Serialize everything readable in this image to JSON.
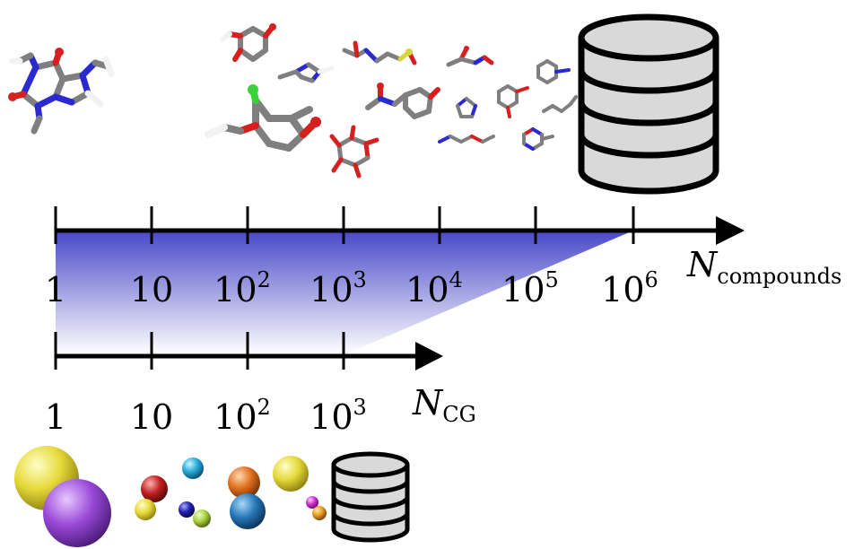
{
  "top_axis": {
    "ticks": [
      {
        "base": "1",
        "exp": ""
      },
      {
        "base": "10",
        "exp": ""
      },
      {
        "base": "10",
        "exp": "2"
      },
      {
        "base": "10",
        "exp": "3"
      },
      {
        "base": "10",
        "exp": "4"
      },
      {
        "base": "10",
        "exp": "5"
      },
      {
        "base": "10",
        "exp": "6"
      }
    ],
    "label_main": "N",
    "label_sub": "compounds"
  },
  "bottom_axis": {
    "ticks": [
      {
        "base": "1",
        "exp": ""
      },
      {
        "base": "10",
        "exp": ""
      },
      {
        "base": "10",
        "exp": "2"
      },
      {
        "base": "10",
        "exp": "3"
      }
    ],
    "label_main": "N",
    "label_sub": "CG"
  },
  "colors": {
    "gradient_top": "#4444c8",
    "gradient_bottom": "#ffffff",
    "database_fill": "#d9d9d9",
    "carbon": "#7f7f7f",
    "nitrogen": "#2a2ad0",
    "oxygen": "#d62020",
    "hydrogen": "#f2f2f2",
    "chlorine": "#3bd13b",
    "sulfur": "#d6d63a"
  },
  "icons": {
    "large_database": "database-icon",
    "small_database": "database-icon",
    "molecules": "molecule-icon",
    "beads": "coarse-grained-bead-icon"
  }
}
